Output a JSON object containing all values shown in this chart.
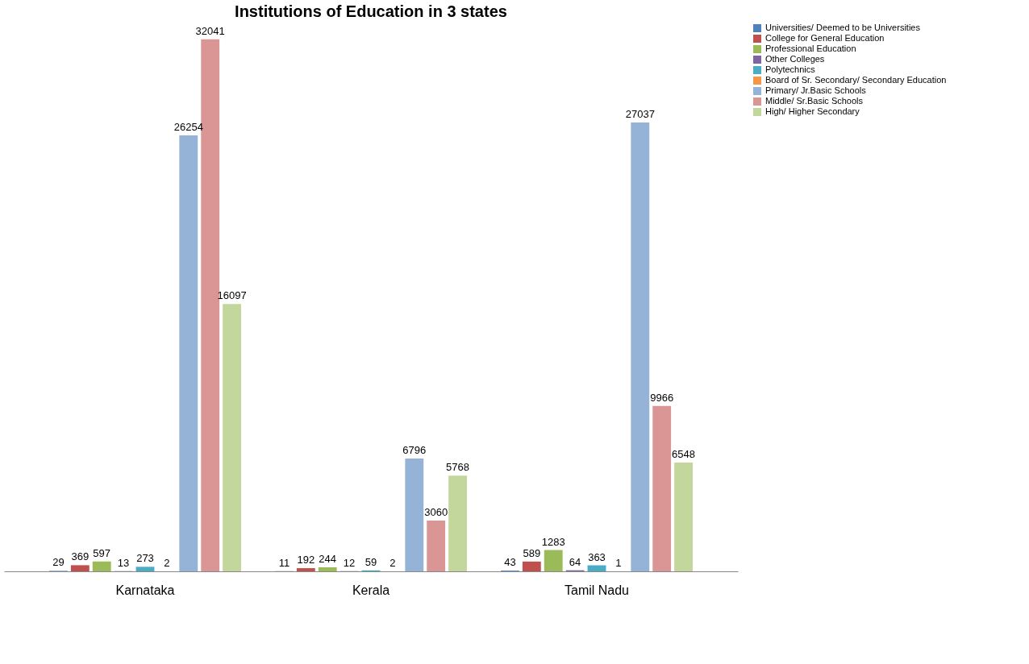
{
  "chart_data": {
    "type": "bar",
    "title": "Institutions of Education in 3 states",
    "categories": [
      "Karnataka",
      "Kerala",
      "Tamil Nadu"
    ],
    "series": [
      {
        "name": "Universities/ Deemed to be Universities",
        "color": "#4f81bd",
        "values": [
          29,
          11,
          43
        ]
      },
      {
        "name": "College for General Education",
        "color": "#c0504d",
        "values": [
          369,
          192,
          589
        ]
      },
      {
        "name": "Professional Education",
        "color": "#9bbb59",
        "values": [
          597,
          244,
          1283
        ]
      },
      {
        "name": "Other  Colleges",
        "color": "#8064a2",
        "values": [
          13,
          12,
          64
        ]
      },
      {
        "name": "Polytechnics",
        "color": "#4bacc6",
        "values": [
          273,
          59,
          363
        ]
      },
      {
        "name": "Board of Sr. Secondary/ Secondary Education",
        "color": "#f79646",
        "values": [
          2,
          2,
          1
        ]
      },
      {
        "name": "Primary/ Jr.Basic Schools",
        "color": "#95b3d7",
        "values": [
          26254,
          6796,
          27037
        ]
      },
      {
        "name": "Middle/ Sr.Basic Schools",
        "color": "#d99694",
        "values": [
          32041,
          3060,
          9966
        ]
      },
      {
        "name": "High/   Higher Secondary",
        "color": "#c3d69b",
        "values": [
          16097,
          5768,
          6548
        ]
      }
    ],
    "data_labels": true,
    "legend": "right",
    "grid": false
  }
}
